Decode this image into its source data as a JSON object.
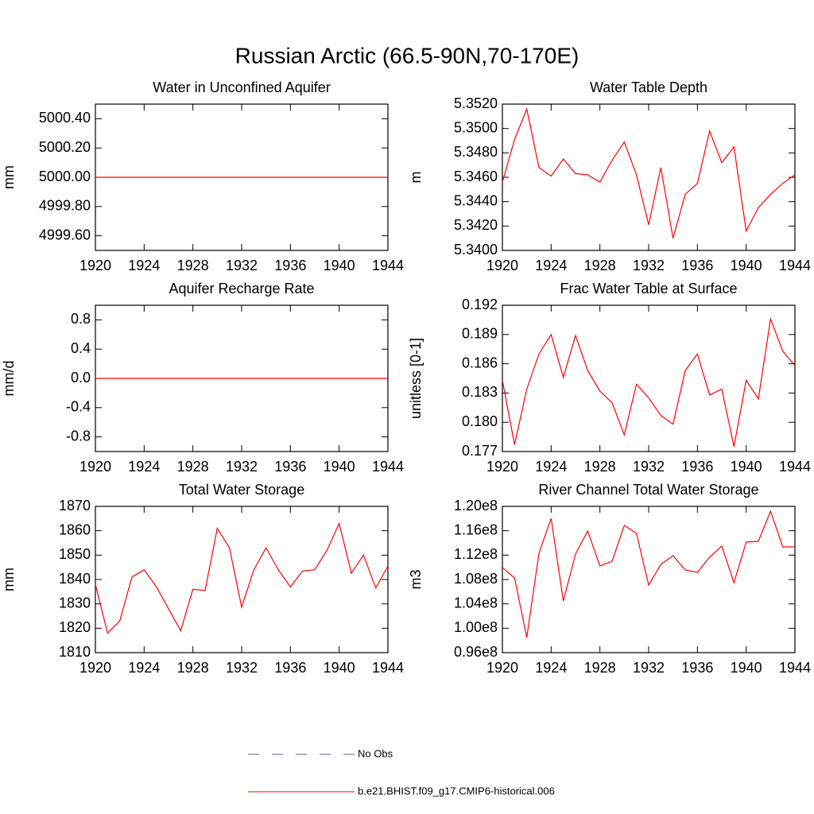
{
  "title": "Russian Arctic (66.5-90N,70-170E)",
  "legend": [
    {
      "name": "No Obs",
      "color": "#5a5aa8",
      "dash": true
    },
    {
      "name": "b.e21.BHIST.f09_g17.CMIP6-historical.006",
      "color": "#ff0000",
      "dash": false
    }
  ],
  "chart_data": [
    {
      "type": "line",
      "title": "Water in Unconfined Aquifer",
      "ylabel": "mm",
      "x": [
        1920,
        1921,
        1922,
        1923,
        1924,
        1925,
        1926,
        1927,
        1928,
        1929,
        1930,
        1931,
        1932,
        1933,
        1934,
        1935,
        1936,
        1937,
        1938,
        1939,
        1940,
        1941,
        1942,
        1943,
        1944
      ],
      "xlim": [
        1920,
        1944
      ],
      "xticks": [
        1920,
        1924,
        1928,
        1932,
        1936,
        1940,
        1944
      ],
      "ylim": [
        4999.5,
        5000.5
      ],
      "yticks": [
        {
          "value": 4999.6,
          "label": "4999.60"
        },
        {
          "value": 4999.8,
          "label": "4999.80"
        },
        {
          "value": 5000,
          "label": "5000.00"
        },
        {
          "value": 5000.2,
          "label": "5000.20"
        },
        {
          "value": 5000.4,
          "label": "5000.40"
        }
      ],
      "series": [
        {
          "color": "#ff0000",
          "values": [
            5000,
            5000,
            5000,
            5000,
            5000,
            5000,
            5000,
            5000,
            5000,
            5000,
            5000,
            5000,
            5000,
            5000,
            5000,
            5000,
            5000,
            5000,
            5000,
            5000,
            5000,
            5000,
            5000,
            5000,
            5000
          ]
        }
      ]
    },
    {
      "type": "line",
      "title": "Water Table Depth",
      "ylabel": "m",
      "x": [
        1920,
        1921,
        1922,
        1923,
        1924,
        1925,
        1926,
        1927,
        1928,
        1929,
        1930,
        1931,
        1932,
        1933,
        1934,
        1935,
        1936,
        1937,
        1938,
        1939,
        1940,
        1941,
        1942,
        1943,
        1944
      ],
      "xlim": [
        1920,
        1944
      ],
      "xticks": [
        1920,
        1924,
        1928,
        1932,
        1936,
        1940,
        1944
      ],
      "ylim": [
        5.34,
        5.352
      ],
      "yticks": [
        {
          "value": 5.34,
          "label": "5.3400"
        },
        {
          "value": 5.342,
          "label": "5.3420"
        },
        {
          "value": 5.344,
          "label": "5.3440"
        },
        {
          "value": 5.346,
          "label": "5.3460"
        },
        {
          "value": 5.348,
          "label": "5.3480"
        },
        {
          "value": 5.35,
          "label": "5.3500"
        },
        {
          "value": 5.352,
          "label": "5.3520"
        }
      ],
      "series": [
        {
          "color": "#ff0000",
          "values": [
            5.3456,
            5.3491,
            5.3516,
            5.3468,
            5.3461,
            5.3475,
            5.3463,
            5.3462,
            5.3456,
            5.3474,
            5.3489,
            5.3462,
            5.3421,
            5.3468,
            5.341,
            5.3446,
            5.3455,
            5.3498,
            5.3472,
            5.3485,
            5.3416,
            5.3435,
            5.3446,
            5.3455,
            5.3462
          ]
        }
      ]
    },
    {
      "type": "line",
      "title": "Aquifer Recharge Rate",
      "ylabel": "mm/d",
      "x": [
        1920,
        1921,
        1922,
        1923,
        1924,
        1925,
        1926,
        1927,
        1928,
        1929,
        1930,
        1931,
        1932,
        1933,
        1934,
        1935,
        1936,
        1937,
        1938,
        1939,
        1940,
        1941,
        1942,
        1943,
        1944
      ],
      "xlim": [
        1920,
        1944
      ],
      "xticks": [
        1920,
        1924,
        1928,
        1932,
        1936,
        1940,
        1944
      ],
      "ylim": [
        -1,
        1
      ],
      "yticks": [
        -0.8,
        -0.4,
        {
          "value": 0,
          "label": "0.0"
        },
        0.4,
        0.8
      ],
      "series": [
        {
          "color": "#ff0000",
          "values": [
            0,
            0,
            0,
            0,
            0,
            0,
            0,
            0,
            0,
            0,
            0,
            0,
            0,
            0,
            0,
            0,
            0,
            0,
            0,
            0,
            0,
            0,
            0,
            0,
            0
          ]
        }
      ]
    },
    {
      "type": "line",
      "title": "Frac Water Table at Surface",
      "ylabel": "unitless [0-1]",
      "x": [
        1920,
        1921,
        1922,
        1923,
        1924,
        1925,
        1926,
        1927,
        1928,
        1929,
        1930,
        1931,
        1932,
        1933,
        1934,
        1935,
        1936,
        1937,
        1938,
        1939,
        1940,
        1941,
        1942,
        1943,
        1944
      ],
      "xlim": [
        1920,
        1944
      ],
      "xticks": [
        1920,
        1924,
        1928,
        1932,
        1936,
        1940,
        1944
      ],
      "ylim": [
        0.177,
        0.192
      ],
      "yticks": [
        0.177,
        {
          "value": 0.18,
          "label": "0.180"
        },
        0.183,
        0.186,
        0.189,
        0.192
      ],
      "series": [
        {
          "color": "#ff0000",
          "values": [
            0.1843,
            0.1777,
            0.1834,
            0.187,
            0.189,
            0.1846,
            0.1889,
            0.1853,
            0.1832,
            0.182,
            0.1787,
            0.1839,
            0.1825,
            0.1807,
            0.1798,
            0.1853,
            0.187,
            0.1828,
            0.1834,
            0.1775,
            0.1843,
            0.1824,
            0.1906,
            0.1873,
            0.1858
          ]
        }
      ]
    },
    {
      "type": "line",
      "title": "Total Water Storage",
      "ylabel": "mm",
      "x": [
        1920,
        1921,
        1922,
        1923,
        1924,
        1925,
        1926,
        1927,
        1928,
        1929,
        1930,
        1931,
        1932,
        1933,
        1934,
        1935,
        1936,
        1937,
        1938,
        1939,
        1940,
        1941,
        1942,
        1943,
        1944
      ],
      "xlim": [
        1920,
        1944
      ],
      "xticks": [
        1920,
        1924,
        1928,
        1932,
        1936,
        1940,
        1944
      ],
      "ylim": [
        1810,
        1870
      ],
      "yticks": [
        1810,
        1820,
        1830,
        1840,
        1850,
        1860,
        1870
      ],
      "series": [
        {
          "color": "#ff0000",
          "values": [
            1838,
            1818,
            1823,
            1841,
            1844,
            1837,
            1828,
            1819,
            1836,
            1835.5,
            1861,
            1853,
            1828.6,
            1844,
            1853,
            1844,
            1837,
            1843.5,
            1844,
            1852,
            1863,
            1842.6,
            1850,
            1836.5,
            1845.5
          ]
        }
      ]
    },
    {
      "type": "line",
      "title": "River Channel Total Water Storage",
      "ylabel": "m3",
      "x": [
        1920,
        1921,
        1922,
        1923,
        1924,
        1925,
        1926,
        1927,
        1928,
        1929,
        1930,
        1931,
        1932,
        1933,
        1934,
        1935,
        1936,
        1937,
        1938,
        1939,
        1940,
        1941,
        1942,
        1943,
        1944
      ],
      "xlim": [
        1920,
        1944
      ],
      "xticks": [
        1920,
        1924,
        1928,
        1932,
        1936,
        1940,
        1944
      ],
      "ylim": [
        96000000,
        120000000
      ],
      "yticks": [
        {
          "value": 96000000,
          "label": "0.96e8"
        },
        {
          "value": 100000000,
          "label": "1.00e8"
        },
        {
          "value": 104000000,
          "label": "1.04e8"
        },
        {
          "value": 108000000,
          "label": "1.08e8"
        },
        {
          "value": 112000000,
          "label": "1.12e8"
        },
        {
          "value": 116000000,
          "label": "1.16e8"
        },
        {
          "value": 120000000,
          "label": "1.20e8"
        }
      ],
      "series": [
        {
          "color": "#ff0000",
          "values": [
            109960000,
            108260000,
            98480000,
            112300000,
            118040000,
            104480000,
            112170000,
            115960000,
            110220000,
            111000000,
            116870000,
            115570000,
            107090000,
            110480000,
            111910000,
            109570000,
            109170000,
            111650000,
            113480000,
            107480000,
            114130000,
            114260000,
            119220000,
            113350000,
            113350000
          ]
        }
      ]
    }
  ]
}
